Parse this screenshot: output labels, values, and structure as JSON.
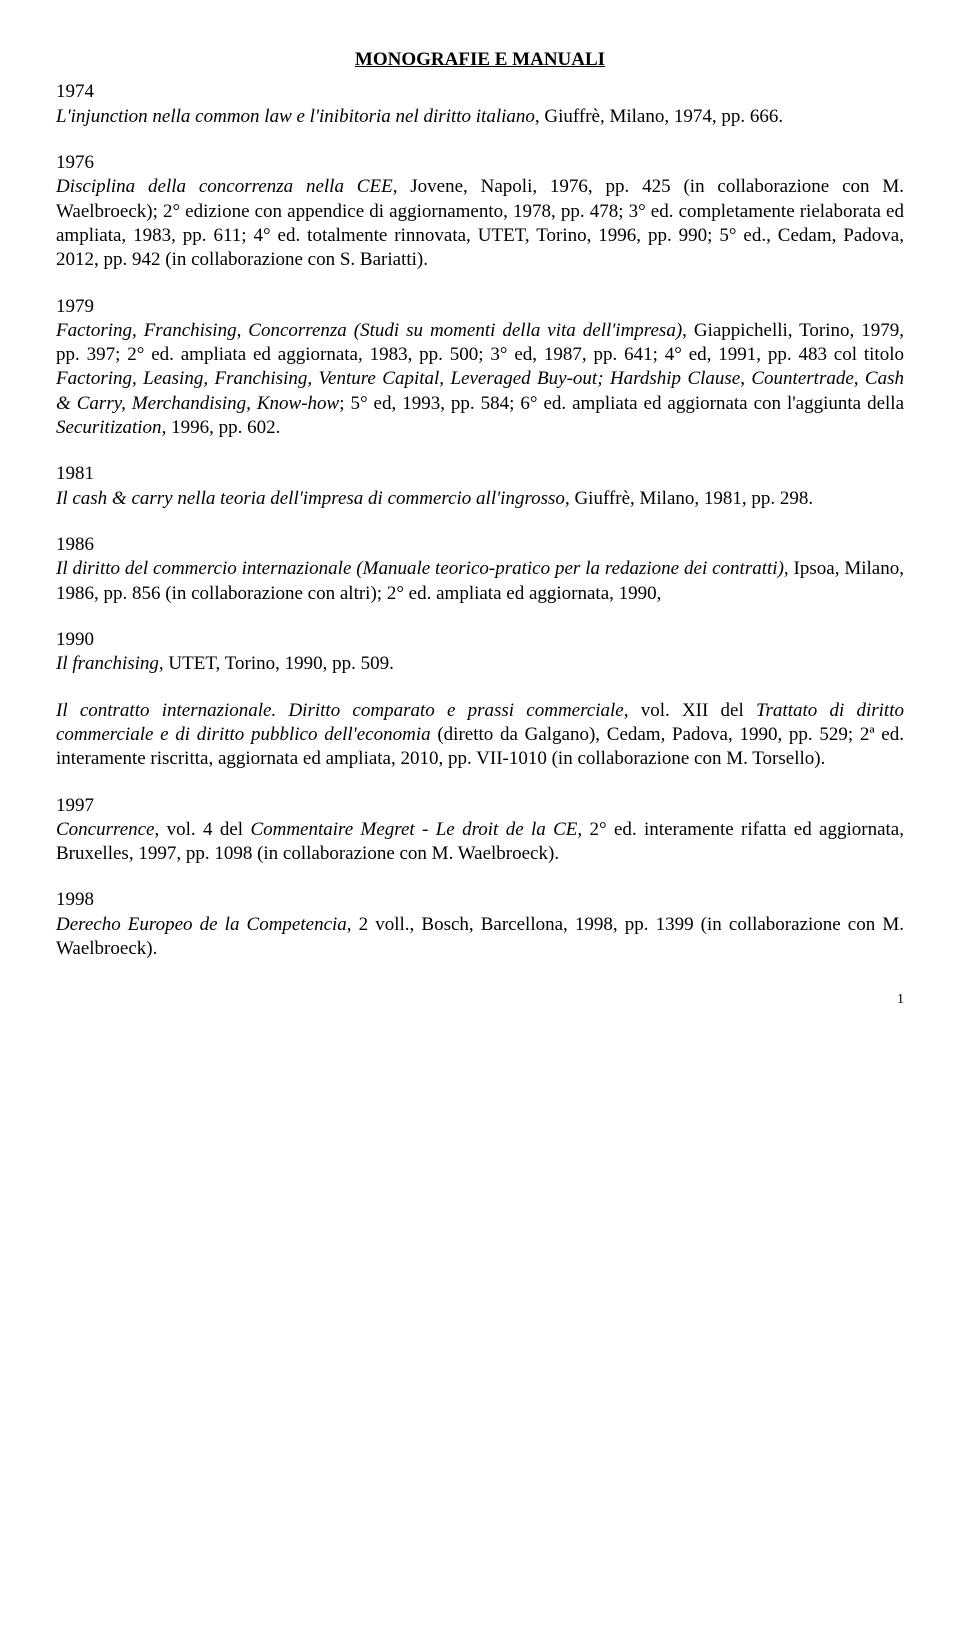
{
  "title": "MONOGRAFIE E MANUALI",
  "entries": [
    {
      "year": "1974",
      "html": "<span class=\"italic\">L'injunction nella common law e l'inibitoria nel diritto italiano</span>, Giuffrè, Milano, 1974, pp. 666."
    },
    {
      "year": "1976",
      "html": "<span class=\"italic\">Disciplina della concorrenza nella CEE</span>, Jovene, Napoli, 1976, pp. 425 (in collaborazione con M. Waelbroeck); 2° edizione con appendice di aggiornamento, 1978, pp. 478; 3° ed. completamente rielaborata ed ampliata, 1983, pp. 611; 4° ed. totalmente rinnovata, UTET, Torino, 1996, pp. 990; 5° ed., Cedam, Padova, 2012, pp. 942 (in collaborazione con S. Bariatti)."
    },
    {
      "year": "1979",
      "html": "<span class=\"italic\">Factoring, Franchising, Concorrenza (Studi su momenti della vita dell'impresa)</span>, Giappichelli, Torino, 1979, pp. 397; 2° ed. ampliata ed aggiornata, 1983, pp. 500; 3° ed, 1987, pp. 641; 4° ed, 1991, pp. 483 col titolo <span class=\"italic\">Factoring, Leasing, Franchising, Venture Capital, Leveraged Buy-out; Hardship Clause, Countertrade, Cash &amp; Carry, Merchandising, Know-how</span>; 5° ed, 1993, pp. 584; 6° ed. ampliata ed aggiornata con l'aggiunta della <span class=\"italic\">Securitization</span>, 1996, pp. 602."
    },
    {
      "year": "1981",
      "html": "<span class=\"italic\">Il cash &amp; carry nella teoria dell'impresa di commercio all'ingrosso</span>, Giuffrè, Milano, 1981, pp. 298."
    },
    {
      "year": "1986",
      "html": "<span class=\"italic\">Il diritto del commercio internazionale (Manuale teorico-pratico per la redazione dei contratti)</span>, Ipsoa, Milano, 1986, pp. 856 (in collaborazione con altri); 2° ed. ampliata ed aggiornata, 1990,"
    },
    {
      "year": "1990",
      "html": "<span class=\"italic\">Il franchising</span>, UTET, Torino, 1990, pp. 509."
    },
    {
      "year": "",
      "html": "<span class=\"italic\">Il contratto internazionale. Diritto comparato e prassi commerciale</span>, vol. XII del <span class=\"italic\">Trattato di diritto commerciale e di diritto pubblico dell'economia</span> (diretto da Galgano), Cedam, Padova, 1990, pp. 529; 2ª ed. interamente riscritta, aggiornata ed ampliata, 2010, pp. VII-1010 (in collaborazione con M. Torsello)."
    },
    {
      "year": "1997",
      "html": "<span class=\"italic\">Concurrence</span>, vol. 4 del <span class=\"italic\">Commentaire Megret - Le droit de la CE</span>, 2° ed. interamente rifatta ed aggiornata, Bruxelles, 1997, pp. 1098 (in collaborazione con M. Waelbroeck)."
    },
    {
      "year": "1998",
      "html": "<span class=\"italic\">Derecho Europeo de la Competencia</span>, 2 voll., Bosch, Barcellona, 1998, pp. 1399 (in collaborazione con M. Waelbroeck)."
    }
  ],
  "page_number": "1"
}
